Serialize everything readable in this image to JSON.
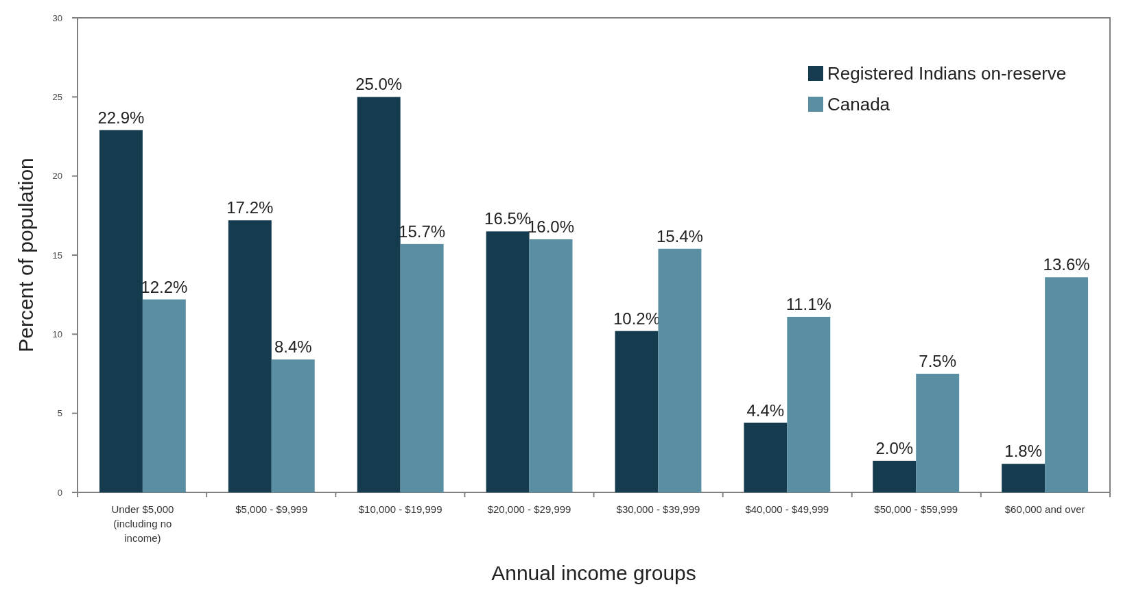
{
  "chart_data": {
    "type": "bar",
    "xlabel": "Annual income groups",
    "ylabel": "Percent of population",
    "categories": [
      "Under $5,000 (including no income)",
      "$5,000 - $9,999",
      "$10,000 - $19,999",
      "$20,000 - $29,999",
      "$30,000 - $39,999",
      "$40,000 - $49,999",
      "$50,000 - $59,999",
      "$60,000 and over"
    ],
    "series": [
      {
        "name": "Registered Indians on-reserve",
        "color": "#143b4e",
        "values": [
          22.9,
          17.2,
          25.0,
          16.5,
          10.2,
          4.4,
          2.0,
          1.8
        ],
        "value_labels": [
          "22.9%",
          "17.2%",
          "25.0%",
          "16.5%",
          "10.2%",
          "4.4%",
          "2.0%",
          "1.8%"
        ]
      },
      {
        "name": "Canada",
        "color": "#5a8fa3",
        "values": [
          12.2,
          8.4,
          15.7,
          16.0,
          15.4,
          11.1,
          7.5,
          13.6
        ],
        "value_labels": [
          "12.2%",
          "8.4%",
          "15.7%",
          "16.0%",
          "15.4%",
          "11.1%",
          "7.5%",
          "13.6%"
        ]
      }
    ],
    "ylim": [
      0,
      30
    ],
    "yticks": [
      0,
      5,
      10,
      15,
      20,
      25,
      30
    ],
    "legend": "top right"
  }
}
